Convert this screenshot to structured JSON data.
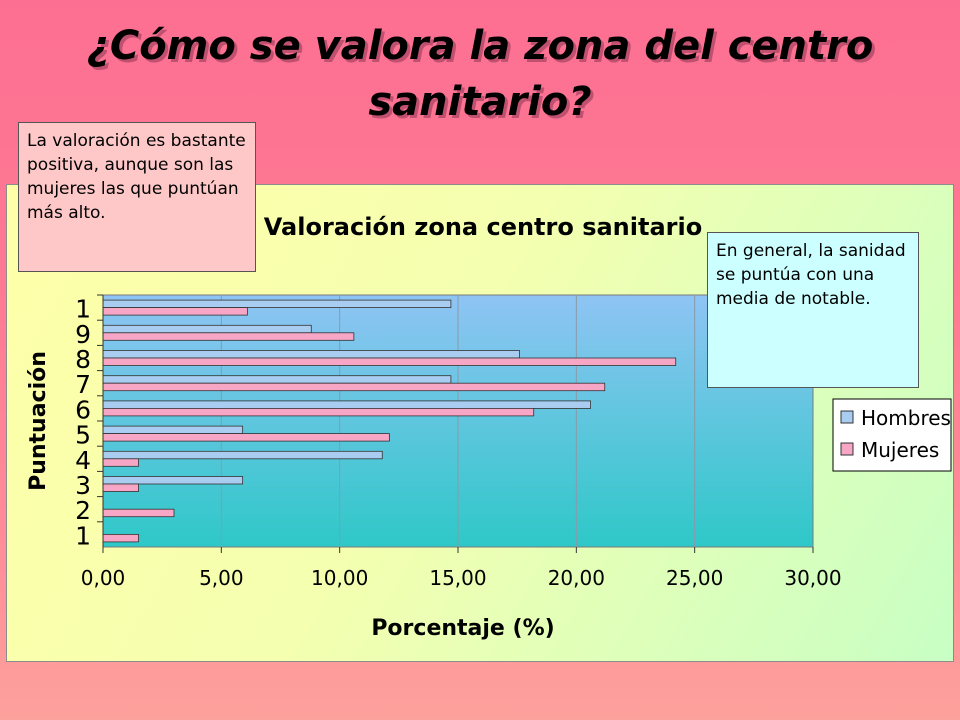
{
  "slide": {
    "title": "¿Cómo se valora la zona del centro sanitario?"
  },
  "callouts": {
    "left": "La valoración es bastante positiva, aunque son las mujeres las que puntúan más alto.",
    "right": "En general, la sanidad se puntúa con una media de notable."
  },
  "colors": {
    "hombres": "#a9cdf0",
    "mujeres": "#f7a6c6",
    "plot_top": "#8fc4f4",
    "plot_bottom": "#2ec8c8"
  },
  "chart_data": {
    "type": "bar",
    "orientation": "horizontal",
    "title": "Valoración zona centro sanitario",
    "xlabel": "Porcentaje (%)",
    "ylabel": "Puntuación",
    "categories": [
      "1",
      "2",
      "3",
      "4",
      "5",
      "6",
      "7",
      "8",
      "9",
      "1"
    ],
    "series": [
      {
        "name": "Hombres",
        "values": [
          0.0,
          0.0,
          5.9,
          11.8,
          5.9,
          20.6,
          14.7,
          17.6,
          8.8,
          14.7
        ]
      },
      {
        "name": "Mujeres",
        "values": [
          1.5,
          3.0,
          1.5,
          1.5,
          12.1,
          18.2,
          21.2,
          24.2,
          10.6,
          6.1
        ]
      }
    ],
    "xlim": [
      0,
      30
    ],
    "x_ticks": [
      "0,00",
      "5,00",
      "10,00",
      "15,00",
      "20,00",
      "25,00",
      "30,00"
    ],
    "grid": "vertical",
    "legend": "right"
  }
}
